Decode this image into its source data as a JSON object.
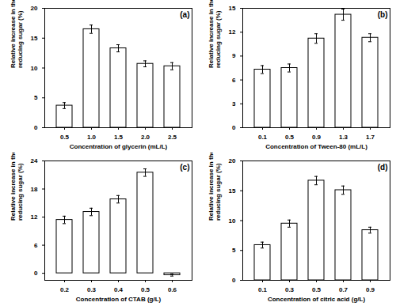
{
  "chart_data": [
    {
      "type": "bar",
      "title": "(a)",
      "color": "#ffffff",
      "xlabel": "Concentration of glycerin (mL/L)",
      "ylabel": "Relative increase in the conversion of reducing sugar (%)",
      "categories": [
        "0.5",
        "1.0",
        "1.5",
        "2.0",
        "2.5"
      ],
      "values": [
        3.7,
        16.5,
        13.3,
        10.7,
        10.3
      ],
      "errors": [
        0.5,
        0.7,
        0.6,
        0.5,
        0.6
      ],
      "ylim": [
        0,
        20
      ],
      "yticks": [
        0,
        5,
        10,
        15,
        20
      ]
    },
    {
      "type": "bar",
      "title": "(b)",
      "color": "#ffffff",
      "xlabel": "Concentration of Tween-80 (mL/L)",
      "ylabel": "Relative increase in the conversion of reducing sugar (%)",
      "categories": [
        "0.1",
        "0.5",
        "0.9",
        "1.3",
        "1.7"
      ],
      "values": [
        7.3,
        7.5,
        11.2,
        14.2,
        11.3
      ],
      "errors": [
        0.5,
        0.5,
        0.6,
        0.7,
        0.5
      ],
      "ylim": [
        0,
        15
      ],
      "yticks": [
        0,
        3,
        6,
        9,
        12,
        15
      ]
    },
    {
      "type": "bar",
      "title": "(c)",
      "color": "#ffffff",
      "xlabel": "Concentration of CTAB (g/L)",
      "ylabel": "Relative increase in the conversion of reducing sugar (%)",
      "categories": [
        "0.2",
        "0.3",
        "0.4",
        "0.5",
        "0.6"
      ],
      "values": [
        11.4,
        13.1,
        15.8,
        21.5,
        -0.4
      ],
      "errors": [
        0.8,
        0.8,
        0.8,
        0.8,
        0.2
      ],
      "ylim": [
        -1.5,
        24
      ],
      "yticks": [
        0,
        6,
        12,
        18,
        24
      ]
    },
    {
      "type": "bar",
      "title": "(d)",
      "color": "#ffffff",
      "xlabel": "Concentration of citric acid (g/L)",
      "ylabel": "Relative increase in the conversion of reducing sugar (%)",
      "categories": [
        "0.1",
        "0.3",
        "0.5",
        "0.7",
        "0.9"
      ],
      "values": [
        5.9,
        9.5,
        16.7,
        15.1,
        8.4
      ],
      "errors": [
        0.5,
        0.6,
        0.7,
        0.7,
        0.5
      ],
      "ylim": [
        0,
        20
      ],
      "yticks": [
        0,
        5,
        10,
        15,
        20
      ]
    }
  ]
}
